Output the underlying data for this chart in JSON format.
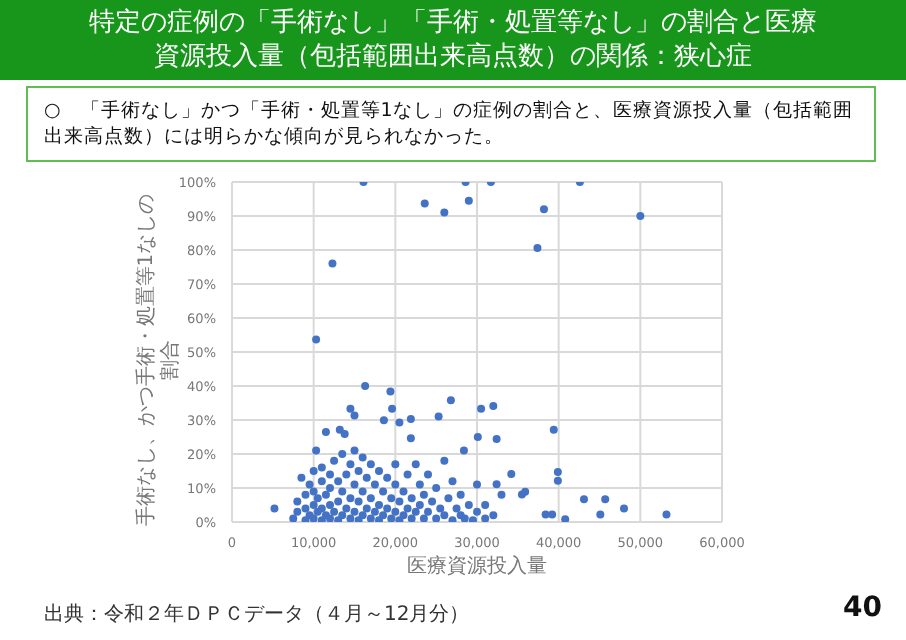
{
  "chart_data": {
    "type": "scatter",
    "title": "特定の症例の「手術なし」「手術・処置等なし」の割合と医療資源投入量（包括範囲出来高点数）の関係：狭心症",
    "xlabel": "医療資源投入量",
    "ylabel": "手術なし、かつ手術・処置等1なしの割合",
    "annotations": [
      "○　「手術なし」かつ「手術・処置等1なし」の症例の割合と、医療資源投入量（包括範囲出来高点数）には明らかな傾向が見られなかった。",
      "出典：令和２年ＤＰＣデータ（４月～12月分）",
      "40"
    ],
    "x": [
      16100,
      28600,
      31700,
      42600,
      23600,
      26000,
      29000,
      38200,
      50000,
      37400,
      12300,
      10300,
      16300,
      19400,
      26800,
      32000,
      30500,
      14500,
      19600,
      25300,
      15000,
      39400,
      30100,
      32400,
      34200,
      39900,
      39900,
      35500,
      35900,
      38400,
      39200,
      40800,
      43100,
      45700,
      45100,
      48000,
      53200,
      5200,
      11500,
      13200,
      13800,
      10300,
      21900,
      20500,
      18600,
      21900,
      28400,
      32400,
      7500,
      8000,
      8000,
      8500,
      9000,
      9000,
      9000,
      9500,
      9500,
      10000,
      10000,
      10000,
      10000,
      10500,
      10500,
      11000,
      11000,
      11000,
      11000,
      11500,
      11500,
      12000,
      12000,
      12000,
      12000,
      12500,
      12500,
      13000,
      13000,
      13000,
      13500,
      13500,
      13500,
      14000,
      14000,
      14500,
      14500,
      14500,
      15000,
      15000,
      15000,
      15500,
      15500,
      15500,
      16000,
      16000,
      16000,
      16500,
      16500,
      17000,
      17000,
      17000,
      17500,
      17500,
      18000,
      18000,
      18000,
      18500,
      18500,
      19000,
      19000,
      19500,
      19500,
      20000,
      20000,
      20000,
      20500,
      20500,
      21000,
      21000,
      21500,
      21500,
      22000,
      22000,
      22500,
      22500,
      23000,
      23000,
      23500,
      23500,
      24000,
      24000,
      24500,
      25000,
      25000,
      25500,
      26000,
      26000,
      26500,
      27000,
      27000,
      27500,
      28000,
      28000,
      28500,
      29000,
      29500,
      30000,
      30000,
      31000,
      31000,
      32000,
      33000
    ],
    "values": [
      100,
      100,
      100,
      100,
      93.7,
      91,
      94.5,
      92,
      90,
      80.6,
      76,
      53.7,
      40,
      38.4,
      35.8,
      34.1,
      33.3,
      33.3,
      33.3,
      31,
      31.3,
      27.1,
      25,
      24.4,
      14.1,
      14.7,
      12.1,
      8.1,
      8.9,
      2.2,
      2.2,
      0.8,
      6.7,
      6.7,
      2.2,
      4,
      2.2,
      4,
      26.5,
      27.1,
      25.9,
      21,
      30.3,
      29.3,
      29.9,
      24.6,
      21,
      11.1,
      1,
      3,
      6,
      13,
      0.5,
      4,
      8,
      2,
      11,
      1,
      5,
      9,
      15,
      3,
      7,
      0.5,
      4,
      12,
      16,
      2,
      8,
      1,
      5,
      10,
      14,
      3,
      18,
      0.5,
      6,
      12,
      2,
      9,
      20,
      4,
      14,
      1,
      7,
      17,
      3,
      11,
      21,
      0.5,
      6,
      15,
      2,
      9,
      19,
      4,
      13,
      1,
      7,
      17,
      3,
      11,
      0.5,
      5,
      15,
      2,
      9,
      4,
      13,
      1,
      7,
      3,
      11,
      17,
      0.5,
      6,
      2,
      9,
      4,
      14,
      1,
      7,
      3,
      17,
      5,
      11,
      1,
      8,
      3,
      14,
      6,
      1,
      10,
      4,
      2,
      18,
      7,
      0.5,
      12,
      4,
      2,
      8,
      1,
      5,
      0.5,
      3,
      11,
      1,
      5,
      2,
      8
    ],
    "color": "#4472c4",
    "marker": "circle",
    "grid": true,
    "xlim": [
      0,
      60000
    ],
    "xticks": [
      0,
      {
        "value": 10000,
        "label": "10,000"
      },
      {
        "value": 20000,
        "label": "20,000"
      },
      {
        "value": 30000,
        "label": "30,000"
      },
      {
        "value": 40000,
        "label": "40,000"
      },
      {
        "value": 50000,
        "label": "50,000"
      },
      {
        "value": 60000,
        "label": "60,000"
      }
    ],
    "ylim": [
      0,
      100
    ],
    "yticks": [
      {
        "value": 0,
        "label": "0%"
      },
      {
        "value": 10,
        "label": "10%"
      },
      {
        "value": 20,
        "label": "20%"
      },
      {
        "value": 30,
        "label": "30%"
      },
      {
        "value": 40,
        "label": "40%"
      },
      {
        "value": 50,
        "label": "50%"
      },
      {
        "value": 60,
        "label": "60%"
      },
      {
        "value": 70,
        "label": "70%"
      },
      {
        "value": 80,
        "label": "80%"
      },
      {
        "value": 90,
        "label": "90%"
      },
      {
        "value": 100,
        "label": "100%"
      }
    ]
  }
}
